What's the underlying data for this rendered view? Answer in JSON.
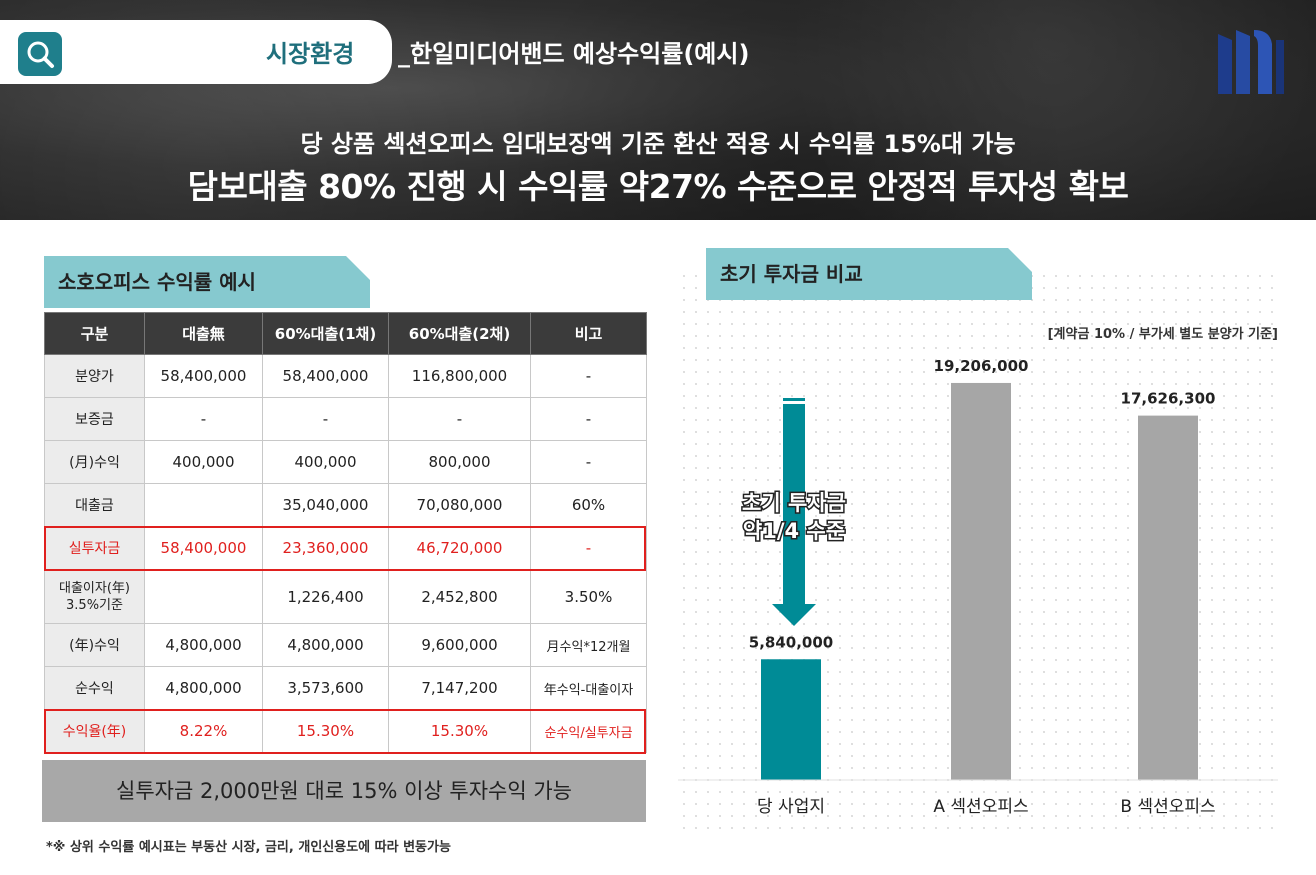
{
  "header": {
    "section_title": "시장환경",
    "sub_title": "_한일미디어밴드 예상수익률(예시)",
    "headline1": "당 상품 섹션오피스 임대보장액 기준 환산 적용 시 수익률 15%대 가능",
    "headline2": "담보대출 80% 진행 시 수익률 약27% 수준으로 안정적 투자성 확보"
  },
  "left": {
    "tag": "소호오피스 수익률 예시",
    "table": {
      "headers": [
        "구분",
        "대출無",
        "60%대출(1채)",
        "60%대출(2채)",
        "비고"
      ],
      "rows": [
        [
          "분양가",
          "58,400,000",
          "58,400,000",
          "116,800,000",
          "-"
        ],
        [
          "보증금",
          "-",
          "-",
          "-",
          "-"
        ],
        [
          "(月)수익",
          "400,000",
          "400,000",
          "800,000",
          "-"
        ],
        [
          "대출금",
          "",
          "35,040,000",
          "70,080,000",
          "60%"
        ],
        [
          "실투자금",
          "58,400,000",
          "23,360,000",
          "46,720,000",
          "-"
        ],
        [
          "대출이자(年) 3.5%기준",
          "",
          "1,226,400",
          "2,452,800",
          "3.50%"
        ],
        [
          "(年)수익",
          "4,800,000",
          "4,800,000",
          "9,600,000",
          "月수익*12개월"
        ],
        [
          "순수익",
          "4,800,000",
          "3,573,600",
          "7,147,200",
          "年수익-대출이자"
        ],
        [
          "수익율(年)",
          "8.22%",
          "15.30%",
          "15.30%",
          "순수익/실투자금"
        ]
      ]
    },
    "banner": "실투자금 2,000만원 대로 15% 이상 투자수익 가능",
    "footnote": "*※ 상위 수익률 예시표는 부동산 시장, 금리, 개인신용도에 따라 변동가능"
  },
  "right": {
    "tag": "초기 투자금 비교",
    "note": "[계약금 10% / 부가세 별도 분양가 기준]",
    "arrow_label_line1": "초기 투자금",
    "arrow_label_line2": "약1/4 수준"
  },
  "chart_data": {
    "type": "bar",
    "title": "",
    "xlabel": "",
    "ylabel": "",
    "categories": [
      "당 사업지",
      "A 섹션오피스",
      "B 섹션오피스"
    ],
    "values": [
      5840000,
      19206000,
      17626300
    ],
    "value_labels": [
      "5,840,000",
      "19,206,000",
      "17,626,300"
    ],
    "ylim": [
      0,
      20800000
    ],
    "grid": false,
    "colors": [
      "#008b96",
      "#a6a6a6",
      "#a6a6a6"
    ]
  }
}
